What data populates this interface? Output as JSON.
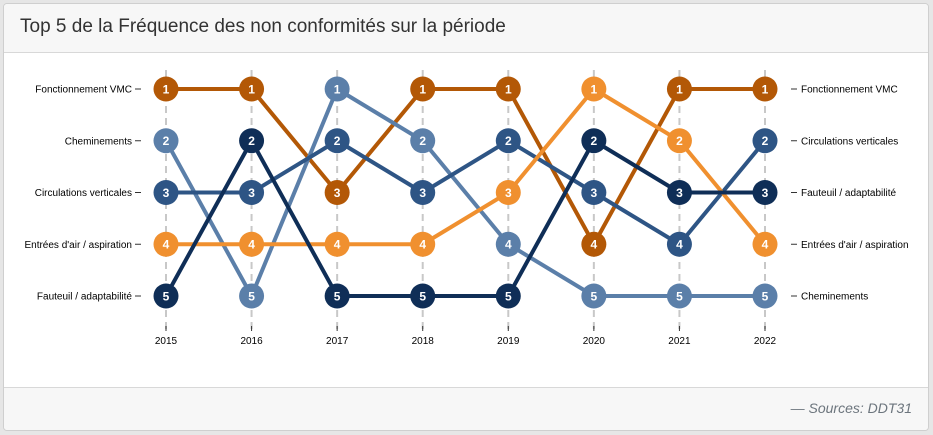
{
  "header": {
    "title": "Top 5 de la Fréquence des non conformités sur la période"
  },
  "footer": {
    "source": "— Sources: DDT31"
  },
  "chart_data": {
    "type": "line",
    "subtype": "bump",
    "x": [
      "2015",
      "2016",
      "2017",
      "2018",
      "2019",
      "2020",
      "2021",
      "2022"
    ],
    "ylim": [
      1,
      5
    ],
    "y_reversed": true,
    "grid": "vertical dashed",
    "left_labels": [
      "Fonctionnement VMC",
      "Cheminements",
      "Circulations verticales",
      "Entrées d'air / aspiration",
      "Fauteuil / adaptabilité"
    ],
    "right_labels": [
      "Fonctionnement VMC",
      "Circulations verticales",
      "Fauteuil / adaptabilité",
      "Entrées d'air / aspiration",
      "Cheminements"
    ],
    "series": [
      {
        "label": "Fonctionnement VMC",
        "color": "#b35806",
        "values": [
          1,
          1,
          3,
          1,
          1,
          4,
          1,
          1
        ]
      },
      {
        "label": "Cheminements",
        "color": "#5b7fa9",
        "values": [
          2,
          5,
          1,
          2,
          4,
          5,
          5,
          5
        ]
      },
      {
        "label": "Circulations verticales",
        "color": "#2e5585",
        "values": [
          3,
          3,
          2,
          3,
          2,
          3,
          4,
          2
        ]
      },
      {
        "label": "Entrées d'air / aspiration",
        "color": "#f0902f",
        "values": [
          4,
          4,
          4,
          4,
          3,
          1,
          2,
          4
        ]
      },
      {
        "label": "Fauteuil / adaptabilité",
        "color": "#0f2e57",
        "values": [
          5,
          2,
          5,
          5,
          5,
          2,
          3,
          3
        ]
      }
    ]
  }
}
